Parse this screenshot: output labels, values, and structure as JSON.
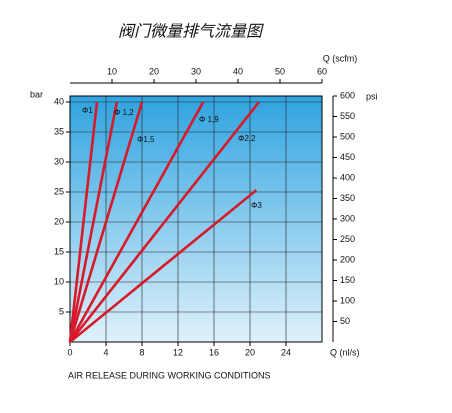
{
  "chart_data": {
    "type": "line",
    "title": "阀门微量排气流量图",
    "x_label": "Q (nl/s)",
    "x2_label": "Q (scfm)",
    "y_label": "bar",
    "y2_label": "psi",
    "caption": "AIR RELEASE DURING WORKING CONDITIONS",
    "xlim": [
      0,
      28
    ],
    "xticks": [
      0,
      4,
      8,
      12,
      16,
      20,
      24
    ],
    "x2lim": [
      0,
      60
    ],
    "x2ticks": [
      10,
      20,
      30,
      40,
      50,
      60
    ],
    "ylim": [
      0,
      41
    ],
    "yticks": [
      5,
      10,
      15,
      20,
      25,
      30,
      35,
      40
    ],
    "y2lim": [
      0,
      600
    ],
    "y2ticks": [
      50,
      100,
      150,
      200,
      250,
      300,
      350,
      400,
      450,
      500,
      550,
      600
    ],
    "grid": true,
    "series": [
      {
        "name": "Φ1",
        "color": "#d7192a",
        "x": [
          0,
          3.0
        ],
        "values": [
          0,
          40
        ]
      },
      {
        "name": "Φ 1,2",
        "color": "#d7192a",
        "x": [
          0,
          5.2
        ],
        "values": [
          0,
          40
        ]
      },
      {
        "name": "Φ1,5",
        "color": "#d7192a",
        "x": [
          0,
          8.0
        ],
        "values": [
          0,
          40
        ]
      },
      {
        "name": "Φ 1,9",
        "color": "#d7192a",
        "x": [
          0,
          14.8
        ],
        "values": [
          0,
          40
        ]
      },
      {
        "name": "Φ2,2",
        "color": "#d7192a",
        "x": [
          0,
          21.0
        ],
        "values": [
          0,
          40
        ]
      },
      {
        "name": "Φ3",
        "color": "#d7192a",
        "x": [
          0,
          20.7
        ],
        "values": [
          0,
          25.3
        ]
      }
    ]
  }
}
